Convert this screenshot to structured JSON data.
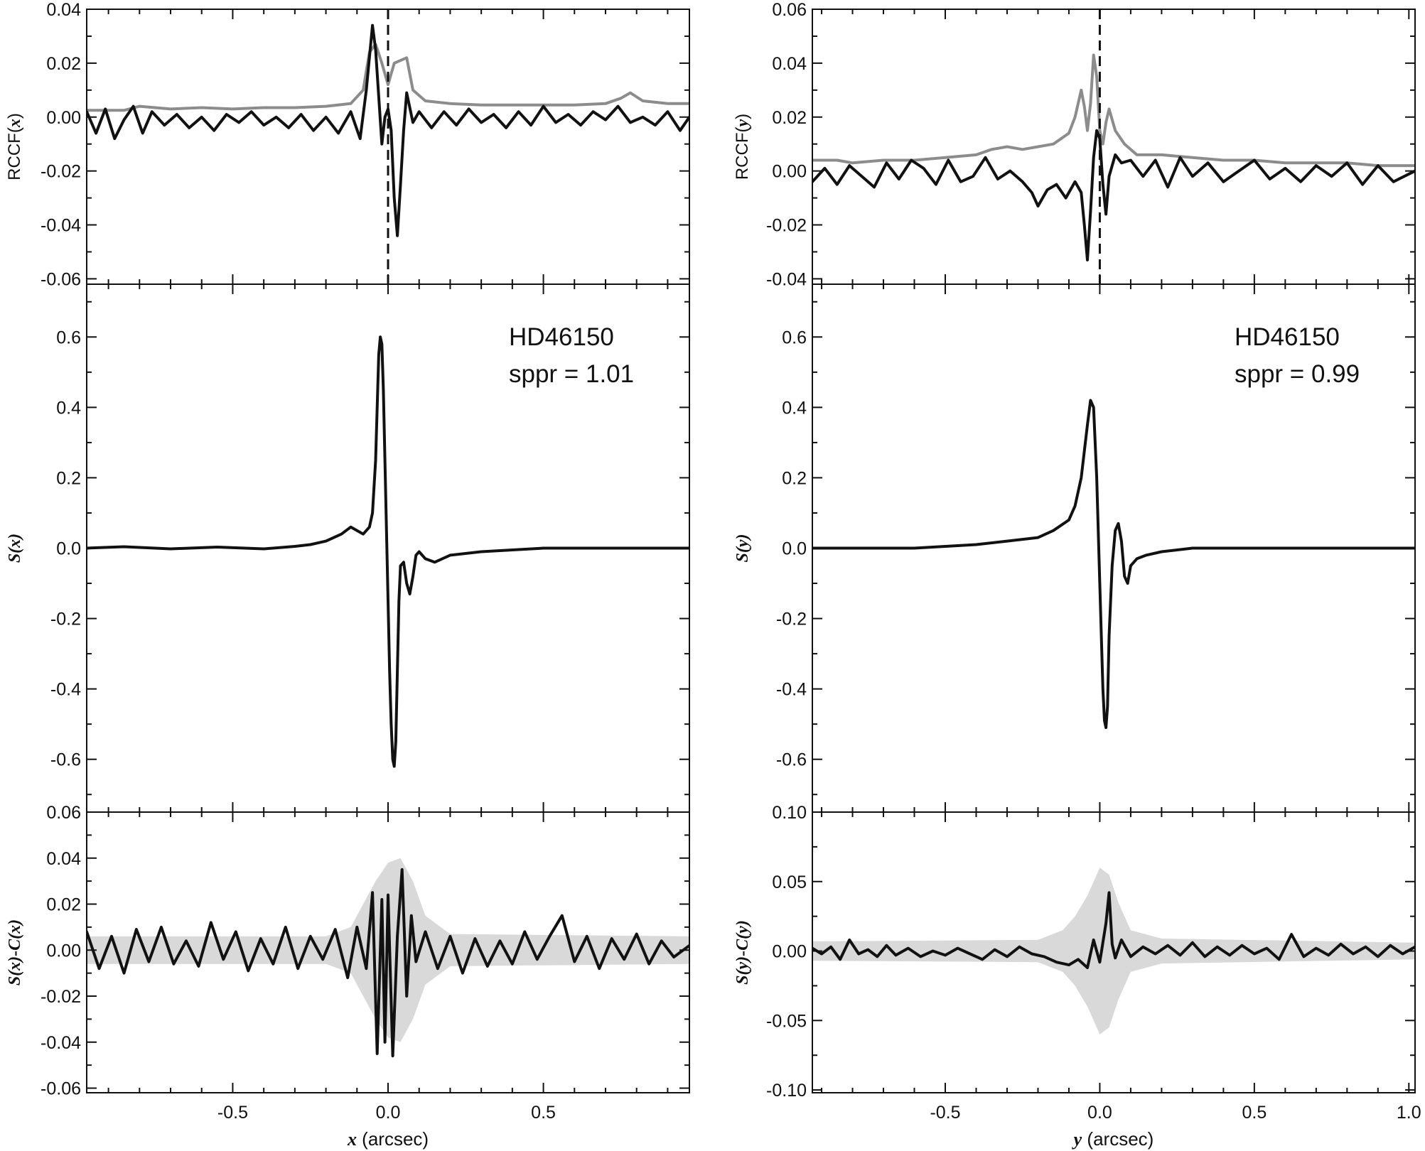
{
  "chart_data": [
    {
      "type": "line",
      "panel": "left-top",
      "ylabel_parts": [
        "RCCF(",
        "x",
        ")"
      ],
      "xlim": [
        -0.97,
        0.97
      ],
      "ylim": [
        -0.062,
        0.04
      ],
      "yticks": [
        -0.06,
        -0.04,
        -0.02,
        0.0,
        0.02,
        0.04
      ],
      "ytick_labels": [
        "-0.06",
        "-0.04",
        "-0.02",
        "0.00",
        "0.02",
        "0.04"
      ],
      "vline_x": 0.0,
      "grid": false,
      "series": [
        {
          "color": "#8c8c8c",
          "style": "solid",
          "x": [
            -0.97,
            -0.85,
            -0.8,
            -0.75,
            -0.7,
            -0.6,
            -0.5,
            -0.4,
            -0.3,
            -0.2,
            -0.12,
            -0.08,
            -0.06,
            -0.04,
            -0.02,
            0.0,
            0.02,
            0.04,
            0.06,
            0.08,
            0.12,
            0.2,
            0.3,
            0.4,
            0.5,
            0.6,
            0.7,
            0.75,
            0.78,
            0.82,
            0.9,
            0.97
          ],
          "y": [
            0.0025,
            0.0025,
            0.004,
            0.0035,
            0.003,
            0.0035,
            0.003,
            0.0035,
            0.0035,
            0.004,
            0.005,
            0.01,
            0.024,
            0.027,
            0.02,
            0.012,
            0.02,
            0.021,
            0.022,
            0.01,
            0.006,
            0.005,
            0.0045,
            0.0045,
            0.0045,
            0.0045,
            0.005,
            0.007,
            0.009,
            0.006,
            0.005,
            0.005
          ]
        },
        {
          "color": "#111111",
          "style": "solid",
          "x": [
            -0.97,
            -0.94,
            -0.91,
            -0.88,
            -0.85,
            -0.82,
            -0.79,
            -0.76,
            -0.72,
            -0.68,
            -0.64,
            -0.6,
            -0.56,
            -0.52,
            -0.48,
            -0.44,
            -0.4,
            -0.36,
            -0.32,
            -0.28,
            -0.24,
            -0.2,
            -0.16,
            -0.12,
            -0.09,
            -0.07,
            -0.05,
            -0.04,
            -0.02,
            -0.01,
            0.0,
            0.01,
            0.02,
            0.03,
            0.04,
            0.05,
            0.06,
            0.08,
            0.1,
            0.14,
            0.18,
            0.22,
            0.26,
            0.3,
            0.34,
            0.38,
            0.42,
            0.46,
            0.5,
            0.54,
            0.58,
            0.62,
            0.66,
            0.7,
            0.74,
            0.78,
            0.82,
            0.86,
            0.9,
            0.94,
            0.97
          ],
          "y": [
            0.002,
            -0.006,
            0.003,
            -0.008,
            -0.001,
            0.004,
            -0.006,
            0.002,
            -0.003,
            0.001,
            -0.004,
            0.0,
            -0.005,
            0.001,
            -0.002,
            0.002,
            -0.003,
            0.0,
            -0.004,
            0.001,
            -0.005,
            0.0,
            -0.006,
            0.002,
            -0.008,
            0.01,
            0.034,
            0.025,
            -0.01,
            0.0,
            0.003,
            -0.005,
            -0.03,
            -0.044,
            -0.025,
            -0.005,
            0.009,
            -0.002,
            0.002,
            -0.004,
            0.002,
            -0.003,
            0.003,
            -0.002,
            0.001,
            -0.004,
            0.002,
            -0.003,
            0.004,
            -0.002,
            0.001,
            -0.003,
            0.002,
            -0.001,
            0.004,
            -0.002,
            0.0,
            -0.003,
            0.002,
            -0.005,
            0.0
          ]
        }
      ]
    },
    {
      "type": "line",
      "panel": "left-middle",
      "ylabel_parts": [
        "S(x)"
      ],
      "xlim": [
        -0.97,
        0.97
      ],
      "ylim": [
        -0.75,
        0.75
      ],
      "yticks": [
        -0.6,
        -0.4,
        -0.2,
        0.0,
        0.2,
        0.4,
        0.6
      ],
      "ytick_labels": [
        "-0.6",
        "-0.4",
        "-0.2",
        "0.0",
        "0.2",
        "0.4",
        "0.6"
      ],
      "annotations": [
        "HD46150",
        "sppr = 1.01"
      ],
      "series": [
        {
          "color": "#111111",
          "style": "solid",
          "x": [
            -0.97,
            -0.85,
            -0.7,
            -0.55,
            -0.4,
            -0.3,
            -0.25,
            -0.2,
            -0.15,
            -0.12,
            -0.1,
            -0.08,
            -0.06,
            -0.05,
            -0.04,
            -0.035,
            -0.03,
            -0.025,
            -0.02,
            -0.015,
            -0.01,
            -0.005,
            0.0,
            0.005,
            0.01,
            0.015,
            0.02,
            0.025,
            0.03,
            0.035,
            0.04,
            0.05,
            0.06,
            0.07,
            0.08,
            0.09,
            0.1,
            0.12,
            0.15,
            0.2,
            0.3,
            0.5,
            0.7,
            0.97
          ],
          "y": [
            0.0,
            0.004,
            -0.002,
            0.003,
            -0.002,
            0.005,
            0.01,
            0.02,
            0.04,
            0.06,
            0.05,
            0.04,
            0.06,
            0.1,
            0.25,
            0.4,
            0.55,
            0.6,
            0.58,
            0.45,
            0.25,
            0.05,
            -0.15,
            -0.35,
            -0.5,
            -0.6,
            -0.62,
            -0.55,
            -0.35,
            -0.15,
            -0.05,
            -0.04,
            -0.1,
            -0.13,
            -0.08,
            -0.02,
            -0.01,
            -0.03,
            -0.04,
            -0.02,
            -0.01,
            0.0,
            0.0,
            0.0
          ]
        }
      ]
    },
    {
      "type": "line",
      "panel": "left-bottom",
      "ylabel_parts": [
        "S(x)-C(x)"
      ],
      "xlim": [
        -0.97,
        0.97
      ],
      "ylim": [
        -0.062,
        0.06
      ],
      "yticks": [
        -0.06,
        -0.04,
        -0.02,
        0.0,
        0.02,
        0.04,
        0.06
      ],
      "ytick_labels": [
        "-0.06",
        "-0.04",
        "-0.02",
        "0.00",
        "0.02",
        "0.04",
        "0.06"
      ],
      "xticks": [
        -0.5,
        0.0,
        0.5
      ],
      "xtick_labels": [
        "-0.5",
        "0.0",
        "0.5"
      ],
      "xlabel_parts": [
        "x",
        " (arcsec)"
      ],
      "band": {
        "color": "#d9d9d9",
        "x": [
          -0.97,
          -0.2,
          -0.12,
          -0.08,
          -0.04,
          0.0,
          0.04,
          0.08,
          0.12,
          0.2,
          0.97
        ],
        "half_width": [
          0.006,
          0.006,
          0.01,
          0.02,
          0.03,
          0.038,
          0.04,
          0.03,
          0.015,
          0.007,
          0.006
        ]
      },
      "series": [
        {
          "color": "#111111",
          "style": "solid",
          "x": [
            -0.97,
            -0.93,
            -0.89,
            -0.85,
            -0.81,
            -0.77,
            -0.73,
            -0.69,
            -0.65,
            -0.61,
            -0.57,
            -0.53,
            -0.49,
            -0.45,
            -0.41,
            -0.37,
            -0.33,
            -0.29,
            -0.25,
            -0.21,
            -0.17,
            -0.13,
            -0.1,
            -0.07,
            -0.05,
            -0.035,
            -0.02,
            -0.01,
            0.0,
            0.015,
            0.03,
            0.045,
            0.06,
            0.075,
            0.09,
            0.12,
            0.16,
            0.2,
            0.24,
            0.28,
            0.32,
            0.36,
            0.4,
            0.44,
            0.48,
            0.52,
            0.56,
            0.6,
            0.64,
            0.68,
            0.72,
            0.76,
            0.8,
            0.84,
            0.88,
            0.92,
            0.97
          ],
          "y": [
            0.008,
            -0.008,
            0.006,
            -0.01,
            0.009,
            -0.005,
            0.01,
            -0.006,
            0.004,
            -0.007,
            0.012,
            -0.004,
            0.008,
            -0.009,
            0.005,
            -0.006,
            0.01,
            -0.008,
            0.006,
            -0.004,
            0.009,
            -0.012,
            0.01,
            -0.008,
            0.025,
            -0.045,
            0.022,
            -0.04,
            0.024,
            -0.046,
            0.006,
            0.035,
            -0.02,
            0.015,
            -0.005,
            0.008,
            -0.008,
            0.006,
            -0.01,
            0.005,
            -0.007,
            0.004,
            -0.006,
            0.008,
            -0.004,
            0.006,
            0.015,
            -0.005,
            0.006,
            -0.008,
            0.005,
            -0.004,
            0.007,
            -0.006,
            0.004,
            -0.003,
            0.002
          ]
        }
      ]
    },
    {
      "type": "line",
      "panel": "right-top",
      "ylabel_parts": [
        "RCCF(",
        "y",
        ")"
      ],
      "xlim": [
        -0.93,
        1.02
      ],
      "ylim": [
        -0.042,
        0.06
      ],
      "yticks": [
        -0.04,
        -0.02,
        0.0,
        0.02,
        0.04,
        0.06
      ],
      "ytick_labels": [
        "-0.04",
        "-0.02",
        "0.00",
        "0.02",
        "0.04",
        "0.06"
      ],
      "vline_x": 0.0,
      "series": [
        {
          "color": "#8c8c8c",
          "style": "solid",
          "x": [
            -0.93,
            -0.85,
            -0.8,
            -0.7,
            -0.6,
            -0.5,
            -0.4,
            -0.35,
            -0.3,
            -0.25,
            -0.2,
            -0.15,
            -0.1,
            -0.08,
            -0.06,
            -0.05,
            -0.04,
            -0.03,
            -0.02,
            -0.01,
            0.0,
            0.01,
            0.02,
            0.03,
            0.05,
            0.08,
            0.12,
            0.2,
            0.3,
            0.4,
            0.5,
            0.6,
            0.7,
            0.8,
            0.9,
            1.02
          ],
          "y": [
            0.004,
            0.004,
            0.003,
            0.004,
            0.004,
            0.005,
            0.006,
            0.008,
            0.009,
            0.008,
            0.009,
            0.01,
            0.014,
            0.02,
            0.03,
            0.024,
            0.015,
            0.025,
            0.043,
            0.035,
            0.015,
            0.01,
            0.018,
            0.023,
            0.015,
            0.01,
            0.006,
            0.006,
            0.005,
            0.004,
            0.004,
            0.003,
            0.003,
            0.003,
            0.002,
            0.002
          ]
        },
        {
          "color": "#111111",
          "style": "solid",
          "x": [
            -0.93,
            -0.89,
            -0.85,
            -0.81,
            -0.77,
            -0.73,
            -0.69,
            -0.65,
            -0.61,
            -0.57,
            -0.53,
            -0.49,
            -0.45,
            -0.41,
            -0.37,
            -0.33,
            -0.29,
            -0.25,
            -0.22,
            -0.2,
            -0.17,
            -0.14,
            -0.11,
            -0.08,
            -0.06,
            -0.05,
            -0.04,
            -0.03,
            -0.02,
            -0.01,
            0.0,
            0.01,
            0.02,
            0.03,
            0.05,
            0.07,
            0.1,
            0.14,
            0.18,
            0.22,
            0.26,
            0.3,
            0.35,
            0.4,
            0.45,
            0.5,
            0.55,
            0.6,
            0.65,
            0.7,
            0.75,
            0.8,
            0.85,
            0.9,
            0.95,
            1.02
          ],
          "y": [
            -0.004,
            0.001,
            -0.005,
            0.002,
            -0.002,
            -0.006,
            0.003,
            -0.003,
            0.004,
            0.001,
            -0.005,
            0.004,
            -0.004,
            -0.002,
            0.005,
            -0.003,
            0.0,
            -0.004,
            -0.008,
            -0.013,
            -0.007,
            -0.005,
            -0.01,
            -0.004,
            -0.008,
            -0.02,
            -0.033,
            -0.015,
            0.005,
            0.015,
            0.012,
            -0.005,
            -0.016,
            -0.002,
            0.006,
            0.003,
            0.004,
            -0.002,
            0.004,
            -0.006,
            0.005,
            -0.002,
            0.003,
            -0.004,
            0.0,
            0.004,
            -0.003,
            0.001,
            -0.004,
            0.002,
            -0.002,
            0.003,
            -0.005,
            0.002,
            -0.004,
            0.0
          ]
        }
      ]
    },
    {
      "type": "line",
      "panel": "right-middle",
      "ylabel_parts": [
        "S(y)"
      ],
      "xlim": [
        -0.93,
        1.02
      ],
      "ylim": [
        -0.75,
        0.75
      ],
      "yticks": [
        -0.6,
        -0.4,
        -0.2,
        0.0,
        0.2,
        0.4,
        0.6
      ],
      "ytick_labels": [
        "-0.6",
        "-0.4",
        "-0.2",
        "0.0",
        "0.2",
        "0.4",
        "0.6"
      ],
      "annotations": [
        "HD46150",
        "sppr = 0.99"
      ],
      "series": [
        {
          "color": "#111111",
          "style": "solid",
          "x": [
            -0.93,
            -0.8,
            -0.6,
            -0.4,
            -0.3,
            -0.2,
            -0.15,
            -0.1,
            -0.08,
            -0.06,
            -0.04,
            -0.03,
            -0.02,
            -0.01,
            0.0,
            0.01,
            0.015,
            0.02,
            0.025,
            0.03,
            0.04,
            0.05,
            0.06,
            0.07,
            0.08,
            0.09,
            0.1,
            0.12,
            0.15,
            0.2,
            0.3,
            0.5,
            0.7,
            1.02
          ],
          "y": [
            0.0,
            0.0,
            0.0,
            0.01,
            0.02,
            0.03,
            0.05,
            0.08,
            0.12,
            0.2,
            0.35,
            0.42,
            0.4,
            0.2,
            -0.1,
            -0.4,
            -0.49,
            -0.51,
            -0.45,
            -0.25,
            -0.05,
            0.05,
            0.07,
            0.02,
            -0.08,
            -0.1,
            -0.05,
            -0.03,
            -0.02,
            -0.01,
            0.0,
            0.0,
            0.0,
            0.0
          ]
        }
      ]
    },
    {
      "type": "line",
      "panel": "right-bottom",
      "ylabel_parts": [
        "S(y)-C(y)"
      ],
      "xlim": [
        -0.93,
        1.02
      ],
      "ylim": [
        -0.102,
        0.1
      ],
      "yticks": [
        -0.1,
        -0.05,
        0.0,
        0.05,
        0.1
      ],
      "ytick_labels": [
        "-0.10",
        "-0.05",
        "0.00",
        "0.05",
        "0.10"
      ],
      "xticks": [
        -0.5,
        0.0,
        0.5,
        1.0
      ],
      "xtick_labels": [
        "-0.5",
        "0.0",
        "0.5",
        "1.0"
      ],
      "xlabel_parts": [
        "y",
        " (arcsec)"
      ],
      "band": {
        "color": "#d9d9d9",
        "x": [
          -0.93,
          -0.2,
          -0.12,
          -0.08,
          -0.04,
          0.0,
          0.03,
          0.06,
          0.1,
          0.2,
          1.02
        ],
        "half_width": [
          0.007,
          0.008,
          0.015,
          0.025,
          0.04,
          0.06,
          0.055,
          0.035,
          0.015,
          0.009,
          0.006
        ]
      },
      "series": [
        {
          "color": "#111111",
          "style": "solid",
          "x": [
            -0.93,
            -0.9,
            -0.87,
            -0.84,
            -0.81,
            -0.78,
            -0.75,
            -0.72,
            -0.69,
            -0.66,
            -0.62,
            -0.58,
            -0.54,
            -0.5,
            -0.46,
            -0.42,
            -0.38,
            -0.34,
            -0.3,
            -0.26,
            -0.22,
            -0.18,
            -0.14,
            -0.1,
            -0.07,
            -0.04,
            -0.02,
            0.0,
            0.02,
            0.03,
            0.04,
            0.05,
            0.07,
            0.1,
            0.14,
            0.18,
            0.22,
            0.26,
            0.3,
            0.34,
            0.38,
            0.42,
            0.46,
            0.5,
            0.54,
            0.58,
            0.62,
            0.66,
            0.7,
            0.74,
            0.78,
            0.82,
            0.86,
            0.9,
            0.94,
            0.98,
            1.02
          ],
          "y": [
            0.002,
            -0.002,
            0.003,
            -0.006,
            0.008,
            -0.002,
            0.001,
            -0.004,
            0.004,
            -0.003,
            0.002,
            -0.004,
            0.0,
            -0.003,
            0.002,
            -0.002,
            -0.006,
            0.001,
            -0.004,
            0.003,
            -0.002,
            -0.004,
            -0.008,
            -0.01,
            -0.006,
            -0.012,
            0.008,
            -0.008,
            0.02,
            0.042,
            0.005,
            -0.005,
            0.008,
            -0.004,
            0.003,
            -0.002,
            0.004,
            -0.003,
            0.006,
            -0.004,
            0.003,
            -0.003,
            0.004,
            -0.002,
            0.002,
            -0.006,
            0.012,
            -0.004,
            0.002,
            -0.003,
            0.005,
            -0.002,
            0.003,
            -0.004,
            0.004,
            -0.002,
            0.003
          ]
        }
      ]
    }
  ]
}
